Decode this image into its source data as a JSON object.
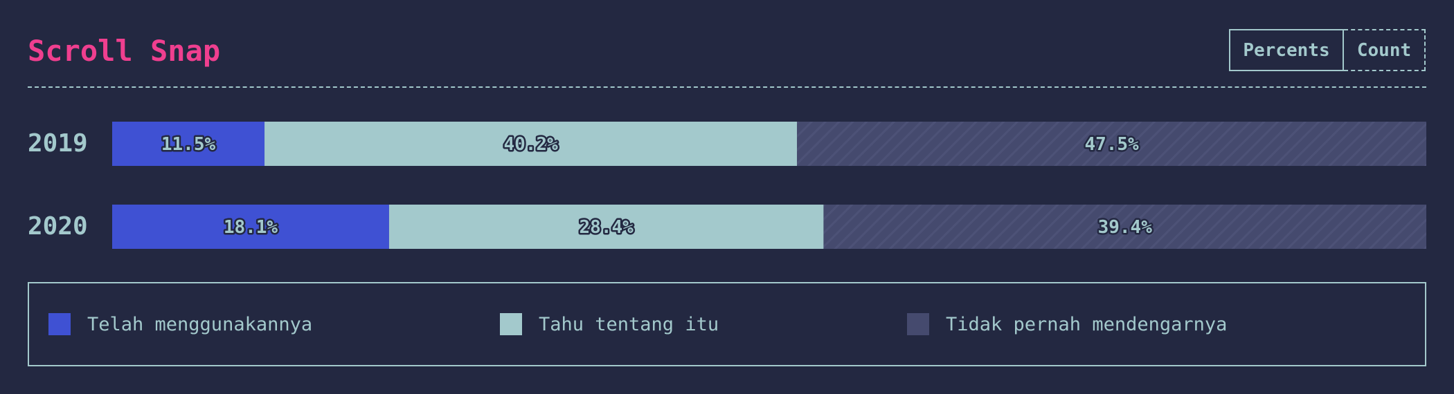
{
  "header": {
    "title": "Scroll Snap",
    "toggle": {
      "percents_label": "Percents",
      "count_label": "Count",
      "selected": "Percents"
    }
  },
  "colors": {
    "background": "#232841",
    "used": "#3f51d3",
    "know": "#a3c9cc",
    "never": "#454a6e",
    "text": "#a3c9cc",
    "title": "#ef3f8f"
  },
  "chart_data": {
    "type": "bar",
    "orientation": "horizontal",
    "stacked": true,
    "categories": [
      "2019",
      "2020"
    ],
    "series": [
      {
        "name": "Telah menggunakannya",
        "values": [
          11.5,
          18.1
        ],
        "labels": [
          "11.5%",
          "18.1%"
        ],
        "color": "#3f51d3"
      },
      {
        "name": "Tahu tentang itu",
        "values": [
          40.2,
          28.4
        ],
        "labels": [
          "40.2%",
          "28.4%"
        ],
        "color": "#a3c9cc"
      },
      {
        "name": "Tidak pernah mendengarnya",
        "values": [
          47.5,
          39.4
        ],
        "labels": [
          "47.5%",
          "39.4%"
        ],
        "color": "#454a6e",
        "pattern": "diagonal-stripes"
      }
    ],
    "legend_position": "bottom",
    "grid": false
  },
  "legend": {
    "items": [
      {
        "label": "Telah menggunakannya",
        "color": "#3f51d3"
      },
      {
        "label": "Tahu tentang itu",
        "color": "#a3c9cc"
      },
      {
        "label": "Tidak pernah mendengarnya",
        "color": "#454a6e"
      }
    ]
  }
}
